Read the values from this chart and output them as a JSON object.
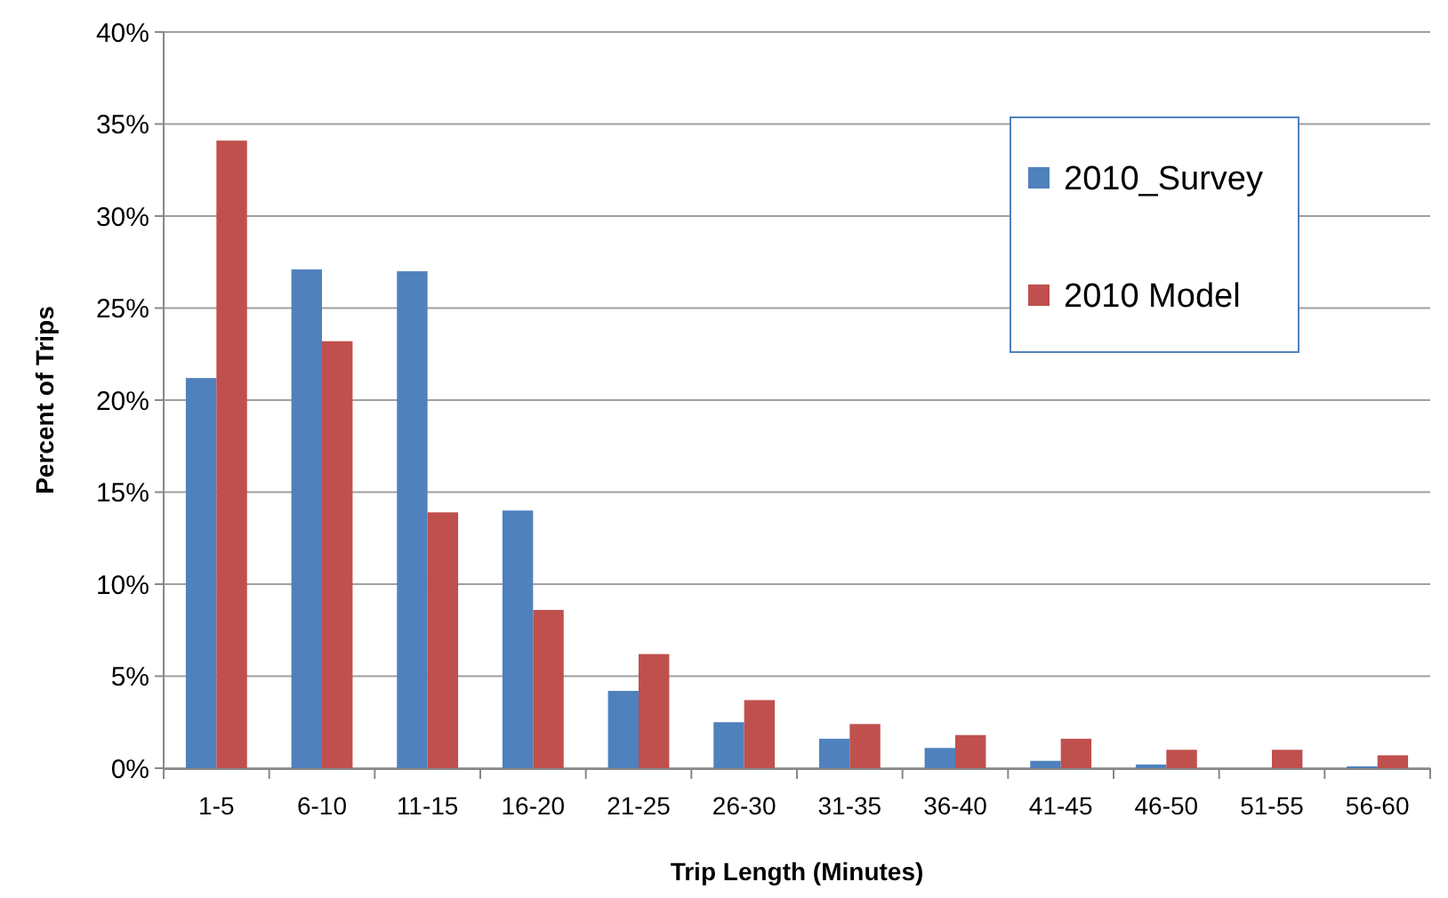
{
  "chart_data": {
    "type": "bar",
    "xlabel": "Trip Length (Minutes)",
    "ylabel": "Percent of Trips",
    "categories": [
      "1-5",
      "6-10",
      "11-15",
      "16-20",
      "21-25",
      "26-30",
      "31-35",
      "36-40",
      "41-45",
      "46-50",
      "51-55",
      "56-60"
    ],
    "series": [
      {
        "name": "2010_Survey",
        "color": "#4f81bd",
        "values": [
          21.2,
          27.1,
          27.0,
          14.0,
          4.2,
          2.5,
          1.6,
          1.1,
          0.4,
          0.2,
          0,
          0.1
        ]
      },
      {
        "name": "2010 Model",
        "color": "#c0504d",
        "values": [
          34.1,
          23.2,
          13.9,
          8.6,
          6.2,
          3.7,
          2.4,
          1.8,
          1.6,
          1.0,
          1.0,
          0.7
        ]
      }
    ],
    "ylim": [
      0,
      40
    ],
    "yticks": [
      {
        "value": 0,
        "label": "0%"
      },
      {
        "value": 5,
        "label": "5%"
      },
      {
        "value": 10,
        "label": "10%"
      },
      {
        "value": 15,
        "label": "15%"
      },
      {
        "value": 20,
        "label": "20%"
      },
      {
        "value": 25,
        "label": "25%"
      },
      {
        "value": 30,
        "label": "30%"
      },
      {
        "value": 35,
        "label": "35%"
      },
      {
        "value": 40,
        "label": "40%"
      }
    ],
    "grid": "y",
    "legend": "top right"
  }
}
